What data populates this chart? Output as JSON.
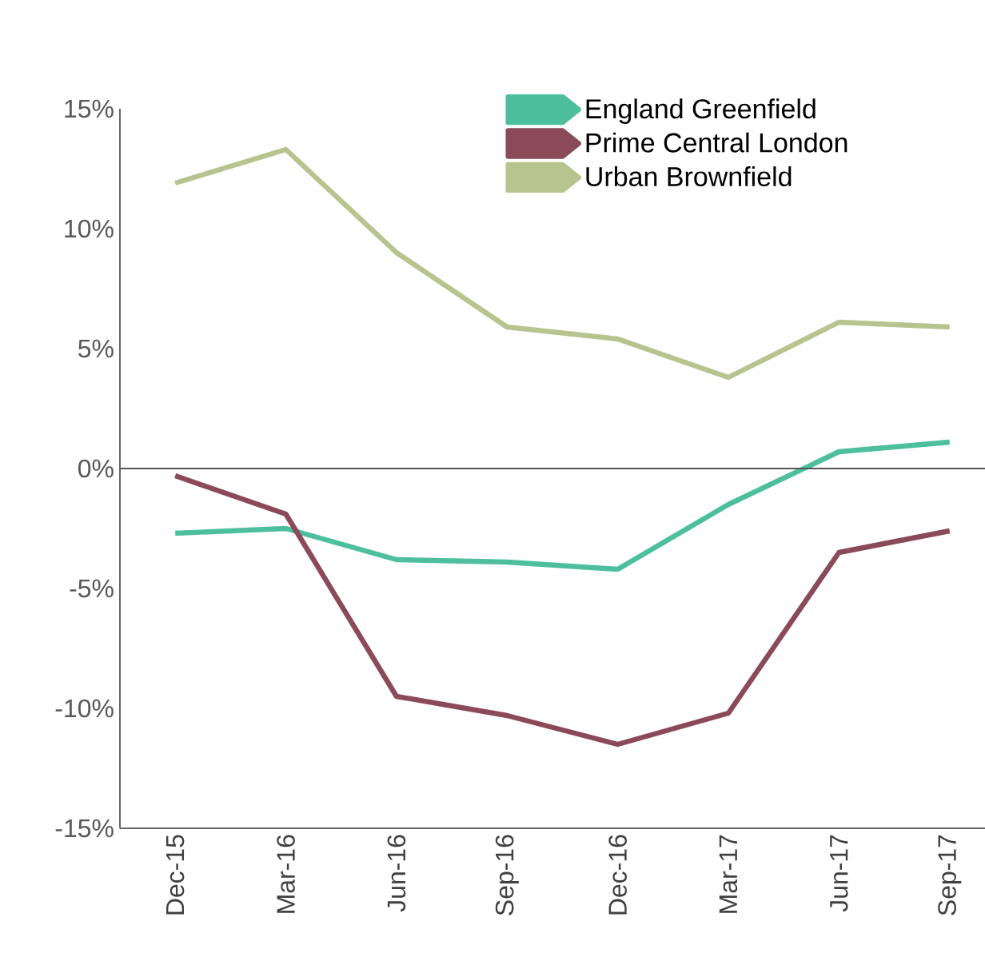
{
  "chart_data": {
    "type": "line",
    "categories": [
      "Dec-15",
      "Mar-16",
      "Jun-16",
      "Sep-16",
      "Dec-16",
      "Mar-17",
      "Jun-17",
      "Sep-17"
    ],
    "series": [
      {
        "name": "England Greenfield",
        "color": "#4dbf9d",
        "values": [
          -2.7,
          -2.5,
          -3.8,
          -3.9,
          -4.2,
          -1.5,
          0.7,
          1.1
        ]
      },
      {
        "name": "Prime Central London",
        "color": "#8b4a58",
        "values": [
          -0.3,
          -1.9,
          -9.5,
          -10.3,
          -11.5,
          -10.2,
          -3.5,
          -2.6
        ]
      },
      {
        "name": "Urban Brownfield",
        "color": "#b8c48f",
        "values": [
          11.9,
          13.3,
          9.0,
          5.9,
          5.4,
          3.8,
          6.1,
          5.9
        ]
      }
    ],
    "ylim": [
      -15,
      15
    ],
    "yticks": [
      {
        "value": -15,
        "label": "-15%"
      },
      {
        "value": -10,
        "label": "-10%"
      },
      {
        "value": -5,
        "label": "-5%"
      },
      {
        "value": 0,
        "label": "0%"
      },
      {
        "value": 5,
        "label": "5%"
      },
      {
        "value": 10,
        "label": "10%"
      },
      {
        "value": 15,
        "label": "15%"
      }
    ],
    "ref_lines": [
      {
        "axis": "y",
        "value": 0,
        "color": "#555555"
      }
    ],
    "legend": "top right",
    "grid": false,
    "marker": "none",
    "line_style": "solid"
  }
}
